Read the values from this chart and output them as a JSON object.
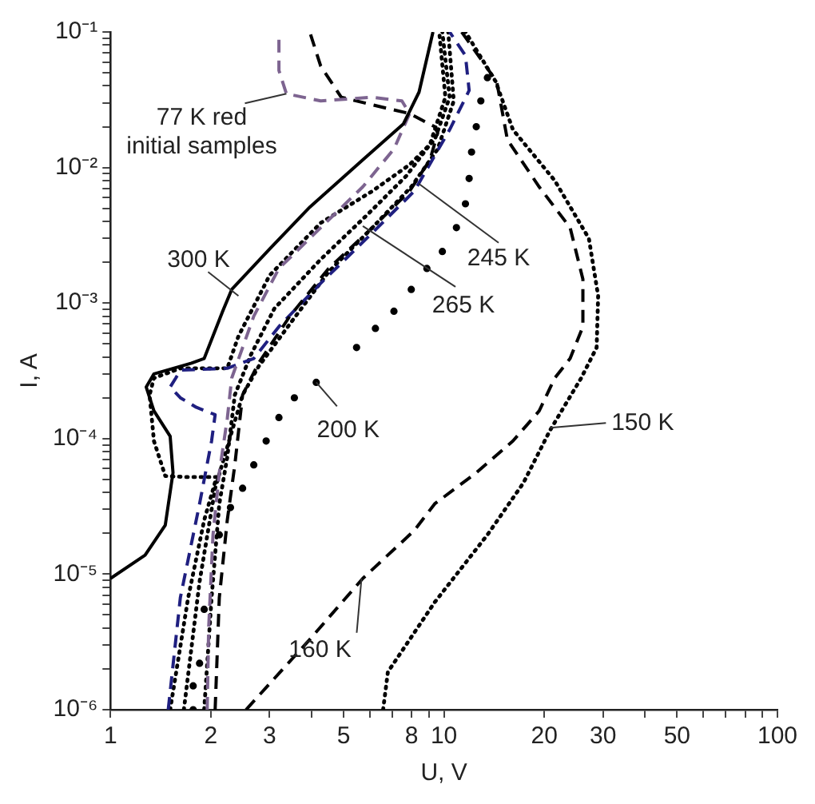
{
  "chart_data": {
    "type": "line",
    "xlabel": "U, V",
    "ylabel": "I, A",
    "log": "xy",
    "grid": false,
    "legend": false,
    "xlim": [
      1,
      100
    ],
    "ylim": [
      1e-06,
      0.1
    ],
    "xticks": [
      1,
      2,
      3,
      {
        "value": 4,
        "label": null
      },
      5,
      {
        "value": 6,
        "label": null
      },
      {
        "value": 7,
        "label": null
      },
      8,
      {
        "value": 9,
        "label": null
      },
      10,
      20,
      30,
      {
        "value": 40,
        "label": null
      },
      50,
      {
        "value": 60,
        "label": null
      },
      {
        "value": 70,
        "label": null
      },
      {
        "value": 80,
        "label": null
      },
      {
        "value": 90,
        "label": null
      },
      100
    ],
    "yticks": [
      {
        "value": 1e-06,
        "label": "10⁻⁶"
      },
      {
        "value": 2e-06,
        "label": null
      },
      {
        "value": 3e-06,
        "label": null
      },
      {
        "value": 4e-06,
        "label": null
      },
      {
        "value": 5e-06,
        "label": null
      },
      {
        "value": 6e-06,
        "label": null
      },
      {
        "value": 7e-06,
        "label": null
      },
      {
        "value": 8e-06,
        "label": null
      },
      {
        "value": 9e-06,
        "label": null
      },
      {
        "value": 1e-05,
        "label": "10⁻⁵"
      },
      {
        "value": 2e-05,
        "label": null
      },
      {
        "value": 3e-05,
        "label": null
      },
      {
        "value": 4e-05,
        "label": null
      },
      {
        "value": 5e-05,
        "label": null
      },
      {
        "value": 6e-05,
        "label": null
      },
      {
        "value": 7e-05,
        "label": null
      },
      {
        "value": 8e-05,
        "label": null
      },
      {
        "value": 9e-05,
        "label": null
      },
      {
        "value": 0.0001,
        "label": "10⁻⁴"
      },
      {
        "value": 0.0002,
        "label": null
      },
      {
        "value": 0.0003,
        "label": null
      },
      {
        "value": 0.0004,
        "label": null
      },
      {
        "value": 0.0005,
        "label": null
      },
      {
        "value": 0.0006,
        "label": null
      },
      {
        "value": 0.0007,
        "label": null
      },
      {
        "value": 0.0008,
        "label": null
      },
      {
        "value": 0.0009,
        "label": null
      },
      {
        "value": 0.001,
        "label": "10⁻³"
      },
      {
        "value": 0.002,
        "label": null
      },
      {
        "value": 0.003,
        "label": null
      },
      {
        "value": 0.004,
        "label": null
      },
      {
        "value": 0.005,
        "label": null
      },
      {
        "value": 0.006,
        "label": null
      },
      {
        "value": 0.007,
        "label": null
      },
      {
        "value": 0.008,
        "label": null
      },
      {
        "value": 0.009,
        "label": null
      },
      {
        "value": 0.01,
        "label": "10⁻²"
      },
      {
        "value": 0.02,
        "label": null
      },
      {
        "value": 0.03,
        "label": null
      },
      {
        "value": 0.04,
        "label": null
      },
      {
        "value": 0.05,
        "label": null
      },
      {
        "value": 0.06,
        "label": null
      },
      {
        "value": 0.07,
        "label": null
      },
      {
        "value": 0.08,
        "label": null
      },
      {
        "value": 0.09,
        "label": null
      },
      {
        "value": 0.1,
        "label": "10⁻¹"
      }
    ],
    "series": [
      {
        "color": "#000000",
        "line_style": "solid",
        "x": [
          1.0,
          1.27,
          1.46,
          1.54,
          1.51,
          1.35,
          1.28,
          1.35,
          1.75,
          1.91,
          2.17,
          2.31,
          3.0,
          3.96,
          5.71,
          7.56,
          8.42,
          9.27
        ],
        "values": [
          9.3e-06,
          1.38e-05,
          2.3e-05,
          5.6e-05,
          0.000104,
          0.00016,
          0.00024,
          0.0003,
          0.00036,
          0.00039,
          0.00087,
          0.00126,
          0.0025,
          0.0051,
          0.0114,
          0.021,
          0.036,
          0.1
        ]
      },
      {
        "color": "#7d6490",
        "line_style": "dashed",
        "x": [
          1.95,
          1.97,
          2.03,
          2.12,
          2.24,
          2.31,
          2.69,
          3.2,
          4.27,
          5.71,
          7.08,
          7.89,
          7.48,
          6.1,
          4.27,
          3.37,
          3.2,
          3.2
        ],
        "values": [
          1e-06,
          4e-06,
          1.95e-05,
          5.6e-05,
          0.00014,
          0.00028,
          0.0008,
          0.0018,
          0.0036,
          0.0072,
          0.0137,
          0.025,
          0.031,
          0.033,
          0.031,
          0.035,
          0.052,
          0.1
        ]
      },
      {
        "color": "#000000",
        "line_style": "dashed",
        "x": [
          2.06,
          2.12,
          2.24,
          2.36,
          2.49,
          2.78,
          3.45,
          4.51,
          6.1,
          7.89,
          9.08,
          9.58,
          9.38,
          7.89,
          6.1,
          4.92,
          4.27,
          3.96
        ],
        "values": [
          1e-06,
          6.7e-06,
          2.5e-05,
          6.4e-05,
          0.00021,
          0.00036,
          0.0008,
          0.0018,
          0.0036,
          0.0067,
          0.0114,
          0.018,
          0.02,
          0.025,
          0.029,
          0.033,
          0.056,
          0.1
        ]
      },
      {
        "color": "#1f1f80",
        "line_style": "dashed",
        "x": [
          1.49,
          1.62,
          1.85,
          2.01,
          2.06,
          1.81,
          1.62,
          1.51,
          1.57,
          1.62,
          2.24,
          2.69,
          3.2,
          4.27,
          6.1,
          8.15,
          10.4,
          11.9,
          11.6,
          10.4
        ],
        "values": [
          1e-06,
          6.7e-06,
          3.3e-05,
          9.6e-05,
          0.00015,
          0.00017,
          0.0002,
          0.00024,
          0.00028,
          0.00032,
          0.00033,
          0.00039,
          0.00067,
          0.0014,
          0.0033,
          0.0067,
          0.019,
          0.037,
          0.067,
          0.1
        ]
      },
      {
        "color": "#000000",
        "line_style": "dotted",
        "x": [
          1.51,
          1.71,
          1.91,
          2.08,
          1.71,
          1.46,
          1.35,
          1.31,
          1.35,
          1.62,
          2.24,
          2.42,
          3.0,
          4.27,
          6.1,
          7.89,
          9.38,
          10.4,
          9.89
        ],
        "values": [
          1e-06,
          6.7e-06,
          2.5e-05,
          5.2e-05,
          5.2e-05,
          5.3e-05,
          9.6e-05,
          0.00021,
          0.00028,
          0.00033,
          0.00033,
          0.00057,
          0.0016,
          0.0039,
          0.0067,
          0.0105,
          0.016,
          0.033,
          0.1
        ]
      },
      {
        "color": "#000000",
        "line_style": "dotted",
        "x": [
          1.91,
          2.01,
          2.12,
          2.24,
          2.36,
          2.63,
          3.1,
          4.27,
          5.9,
          7.72,
          9.08,
          10.1,
          9.68
        ],
        "values": [
          1e-06,
          6.7e-06,
          3.3e-05,
          7.3e-05,
          0.00021,
          0.00041,
          0.00091,
          0.0021,
          0.0045,
          0.0087,
          0.0148,
          0.033,
          0.1
        ]
      },
      {
        "color": "#000000",
        "line_style": "dotted",
        "x": [
          1.66,
          1.85,
          2.06,
          2.49,
          2.78,
          3.45,
          4.51,
          6.1,
          7.98,
          9.58,
          10.7,
          10.3
        ],
        "values": [
          1e-06,
          8.8e-06,
          4.3e-05,
          0.00021,
          0.00034,
          0.0007,
          0.0017,
          0.0036,
          0.0072,
          0.0137,
          0.031,
          0.1
        ]
      },
      {
        "type": "scatter",
        "marker": "circle",
        "color": "#000000",
        "x": [
          1.77,
          1.77,
          1.85,
          1.91,
          2.12,
          2.29,
          2.49,
          2.69,
          2.93,
          3.2,
          3.56,
          4.14,
          5.47,
          6.23,
          7.08,
          7.98,
          8.89,
          9.89,
          10.9,
          11.6,
          11.9,
          12.1,
          12.5,
          12.9,
          13.5
        ],
        "values": [
          1e-06,
          1.5e-06,
          2.2e-06,
          5.5e-06,
          1.95e-05,
          3.1e-05,
          4.3e-05,
          6.4e-05,
          9.6e-05,
          0.000143,
          0.0002,
          0.00026,
          0.00047,
          0.00065,
          0.00087,
          0.00126,
          0.0018,
          0.0024,
          0.0036,
          0.0054,
          0.0083,
          0.013,
          0.02,
          0.031,
          0.046
        ]
      },
      {
        "color": "#000000",
        "line_style": "dashed",
        "x": [
          2.55,
          3.96,
          5.71,
          8.15,
          9.38,
          12.5,
          16.1,
          19.3,
          21.5,
          23.9,
          26.1,
          26.1,
          23.9,
          19.3,
          15.5,
          14.4,
          11.3
        ],
        "values": [
          1e-06,
          3.3e-06,
          9.3e-06,
          2.1e-05,
          3.3e-05,
          5.6e-05,
          9.6e-05,
          0.00016,
          0.00028,
          0.00039,
          0.00067,
          0.0015,
          0.0036,
          0.0072,
          0.016,
          0.043,
          0.1
        ]
      },
      {
        "color": "#000000",
        "line_style": "dotted",
        "x": [
          6.57,
          6.79,
          7.32,
          9.38,
          13.5,
          17.3,
          20.8,
          25.8,
          28.7,
          29.0,
          27.2,
          21.5,
          16.1,
          14.3,
          11.6
        ],
        "values": [
          1e-06,
          1.9e-06,
          2.5e-06,
          6.2e-06,
          1.95e-05,
          4.7e-05,
          0.000115,
          0.00028,
          0.00047,
          0.00113,
          0.003,
          0.008,
          0.019,
          0.043,
          0.1
        ]
      }
    ],
    "annotations": [
      {
        "text": "77 K red\ninitial samples",
        "x": 3.37,
        "y": 0.035
      },
      {
        "text": "300 K",
        "x": 2.42,
        "y": 0.00113
      },
      {
        "text": "245 K",
        "x": 8.4,
        "y": 0.0076
      },
      {
        "text": "265 K",
        "x": 5.71,
        "y": 0.0037
      },
      {
        "text": "200 K",
        "x": 4.14,
        "y": 0.00026
      },
      {
        "text": "150 K",
        "x": 20.8,
        "y": 0.00012
      },
      {
        "text": "160 K",
        "x": 5.66,
        "y": 9.3e-06
      }
    ]
  }
}
